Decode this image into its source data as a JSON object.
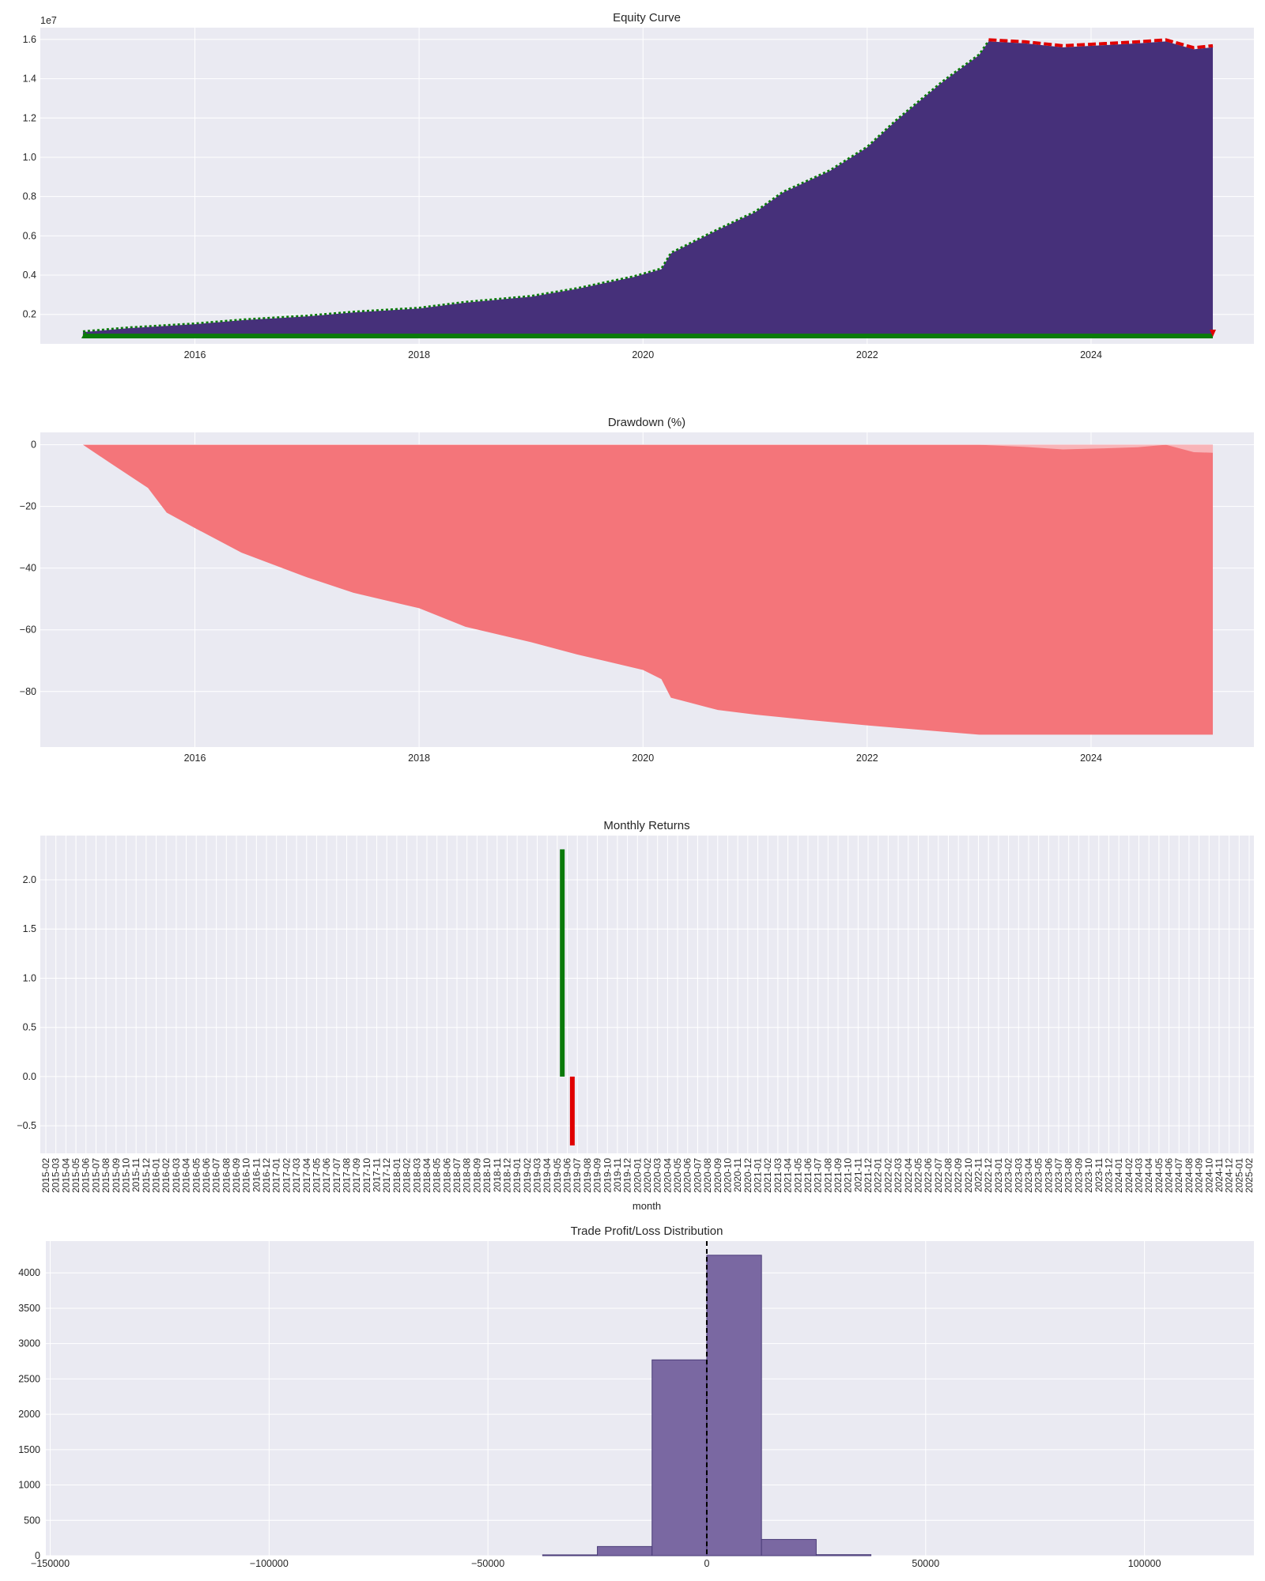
{
  "colors": {
    "panel_bg": "#EAEAF2",
    "grid": "#FFFFFF",
    "equity_fill": "#46307A",
    "buy_marker": "#0A7A0A",
    "sell_marker": "#E00000",
    "drawdown_fill": "#F4757A",
    "return_up": "#0A7A0A",
    "return_down": "#E00000",
    "hist_fill": "#7A68A2",
    "zero_line": "#000000"
  },
  "chart_data": [
    {
      "id": "equity",
      "type": "area",
      "title": "Equity Curve",
      "xlabel": "",
      "ylabel": "",
      "y_offset_label": "1e7",
      "x_ticks": [
        "2016",
        "2018",
        "2020",
        "2022",
        "2024"
      ],
      "y_ticks": [
        "0.2",
        "0.4",
        "0.6",
        "0.8",
        "1.0",
        "1.2",
        "1.4",
        "1.6"
      ],
      "xlim": [
        "2014-08-15",
        "2025-06-15"
      ],
      "ylim": [
        0.05,
        1.66
      ],
      "grid": true,
      "series": [
        {
          "x": [
            "2015-01-01",
            "2015-06-01",
            "2016-01-01",
            "2016-06-01",
            "2017-01-01",
            "2017-06-01",
            "2018-01-01",
            "2018-06-01",
            "2019-01-01",
            "2019-06-01",
            "2019-12-01",
            "2020-03-01",
            "2020-04-01",
            "2020-09-01",
            "2021-01-01",
            "2021-04-01",
            "2021-09-01",
            "2022-01-01",
            "2022-04-01",
            "2022-09-01",
            "2023-01-01",
            "2023-02-01",
            "2023-06-01",
            "2023-10-01",
            "2024-02-01",
            "2024-06-01",
            "2024-09-01",
            "2024-12-01",
            "2025-02-01"
          ],
          "values": [
            0.11,
            0.13,
            0.15,
            0.17,
            0.19,
            0.21,
            0.23,
            0.26,
            0.29,
            0.33,
            0.39,
            0.43,
            0.51,
            0.63,
            0.72,
            0.82,
            0.93,
            1.05,
            1.18,
            1.38,
            1.52,
            1.59,
            1.58,
            1.56,
            1.57,
            1.58,
            1.59,
            1.55,
            1.56
          ]
        }
      ],
      "baseline_band": 0.09
    },
    {
      "id": "drawdown",
      "type": "area",
      "title": "Drawdown (%)",
      "xlabel": "",
      "ylabel": "",
      "x_ticks": [
        "2016",
        "2018",
        "2020",
        "2022",
        "2024"
      ],
      "y_ticks": [
        "0",
        "−20",
        "−40",
        "−60",
        "−80"
      ],
      "xlim": [
        "2014-08-15",
        "2025-06-15"
      ],
      "ylim": [
        -98,
        4
      ],
      "grid": true,
      "series": [
        {
          "x": [
            "2015-01-01",
            "2015-04-01",
            "2015-08-01",
            "2015-10-01",
            "2016-01-01",
            "2016-06-01",
            "2017-01-01",
            "2017-06-01",
            "2018-01-01",
            "2018-06-01",
            "2019-01-01",
            "2019-06-01",
            "2020-01-01",
            "2020-03-01",
            "2020-04-01",
            "2020-09-01",
            "2021-01-01",
            "2021-06-01",
            "2022-01-01",
            "2022-09-01",
            "2023-01-01",
            "2025-02-01"
          ],
          "values": [
            0,
            -6,
            -14,
            -22,
            -27,
            -35,
            -43,
            -48,
            -53,
            -59,
            -64,
            -68,
            -73,
            -76,
            -82,
            -86,
            -87.5,
            -89,
            -91,
            -93,
            -94,
            -94
          ]
        }
      ],
      "overlay": {
        "x": [
          "2023-01-01",
          "2023-06-01",
          "2023-10-01",
          "2024-02-01",
          "2024-06-01",
          "2024-09-01",
          "2024-12-01",
          "2025-02-01"
        ],
        "values": [
          0,
          -0.7,
          -1.5,
          -1.2,
          -0.8,
          0,
          -2.4,
          -2.6
        ]
      }
    },
    {
      "id": "monthly",
      "type": "bar",
      "title": "Monthly Returns",
      "xlabel": "month",
      "ylabel": "",
      "y_ticks": [
        "−0.5",
        "0.0",
        "0.5",
        "1.0",
        "1.5",
        "2.0"
      ],
      "ylim": [
        -0.78,
        2.45
      ],
      "grid": true,
      "categories": [
        "2015-02",
        "2015-03",
        "2015-04",
        "2015-05",
        "2015-06",
        "2015-07",
        "2015-08",
        "2015-09",
        "2015-10",
        "2015-11",
        "2015-12",
        "2016-01",
        "2016-02",
        "2016-03",
        "2016-04",
        "2016-05",
        "2016-06",
        "2016-07",
        "2016-08",
        "2016-09",
        "2016-10",
        "2016-11",
        "2016-12",
        "2017-01",
        "2017-02",
        "2017-03",
        "2017-04",
        "2017-05",
        "2017-06",
        "2017-07",
        "2017-08",
        "2017-09",
        "2017-10",
        "2017-11",
        "2017-12",
        "2018-01",
        "2018-02",
        "2018-03",
        "2018-04",
        "2018-05",
        "2018-06",
        "2018-07",
        "2018-08",
        "2018-09",
        "2018-10",
        "2018-11",
        "2018-12",
        "2019-01",
        "2019-02",
        "2019-03",
        "2019-04",
        "2019-05",
        "2019-06",
        "2019-07",
        "2019-08",
        "2019-09",
        "2019-10",
        "2019-11",
        "2019-12",
        "2020-01",
        "2020-02",
        "2020-03",
        "2020-04",
        "2020-05",
        "2020-06",
        "2020-07",
        "2020-08",
        "2020-09",
        "2020-10",
        "2020-11",
        "2020-12",
        "2021-01",
        "2021-02",
        "2021-03",
        "2021-04",
        "2021-05",
        "2021-06",
        "2021-07",
        "2021-08",
        "2021-09",
        "2021-10",
        "2021-11",
        "2021-12",
        "2022-01",
        "2022-02",
        "2022-03",
        "2022-04",
        "2022-05",
        "2022-06",
        "2022-07",
        "2022-08",
        "2022-09",
        "2022-10",
        "2022-11",
        "2022-12",
        "2023-01",
        "2023-02",
        "2023-03",
        "2023-04",
        "2023-05",
        "2023-06",
        "2023-07",
        "2023-08",
        "2023-09",
        "2023-10",
        "2023-11",
        "2023-12",
        "2024-01",
        "2024-02",
        "2024-03",
        "2024-04",
        "2024-05",
        "2024-06",
        "2024-07",
        "2024-08",
        "2024-09",
        "2024-10",
        "2024-11",
        "2024-12",
        "2025-01",
        "2025-02"
      ],
      "bars": [
        {
          "category": "2019-05",
          "value": 2.31,
          "color": "#0A7A0A"
        },
        {
          "category": "2019-06",
          "value": -0.7,
          "color": "#E00000"
        }
      ]
    },
    {
      "id": "pnl_hist",
      "type": "bar",
      "title": "Trade Profit/Loss Distribution",
      "xlabel": "",
      "ylabel": "",
      "x_ticks": [
        "−150000",
        "−100000",
        "−50000",
        "0",
        "50000",
        "100000"
      ],
      "x_tick_values": [
        -150000,
        -100000,
        -50000,
        0,
        50000,
        100000
      ],
      "y_ticks": [
        "0",
        "500",
        "1000",
        "1500",
        "2000",
        "2500",
        "3000",
        "3500",
        "4000"
      ],
      "y_tick_values": [
        0,
        500,
        1000,
        1500,
        2000,
        2500,
        3000,
        3500,
        4000
      ],
      "xlim": [
        -151000,
        125000
      ],
      "ylim": [
        0,
        4450
      ],
      "grid": true,
      "bins": [
        {
          "x0": -37500,
          "x1": -25000,
          "count": 12
        },
        {
          "x0": -25000,
          "x1": -12500,
          "count": 130
        },
        {
          "x0": -12500,
          "x1": 0,
          "count": 2770
        },
        {
          "x0": 0,
          "x1": 12500,
          "count": 4250
        },
        {
          "x0": 12500,
          "x1": 25000,
          "count": 230
        },
        {
          "x0": 25000,
          "x1": 37500,
          "count": 15
        }
      ],
      "vline": 0
    }
  ]
}
